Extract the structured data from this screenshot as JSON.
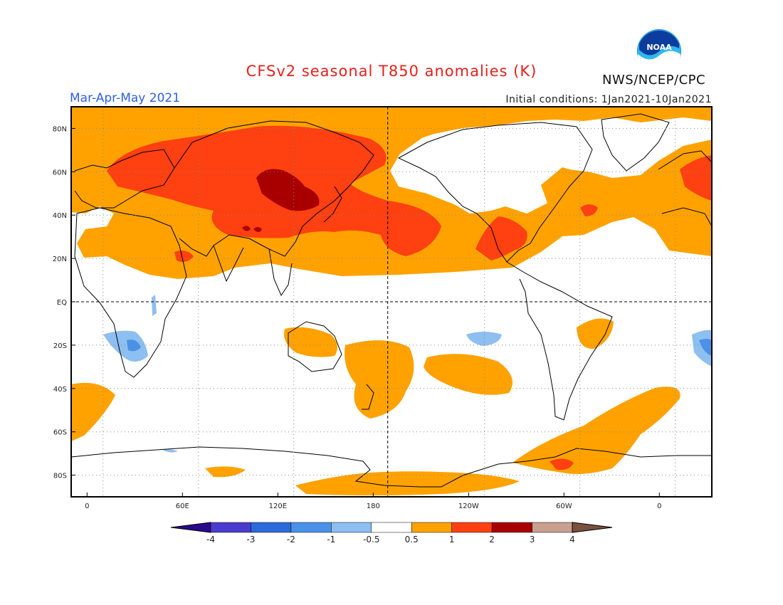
{
  "header": {
    "title": "CFSv2 seasonal T850 anomalies (K)",
    "season": "Mar-Apr-May 2021",
    "initial_conditions": "Initial conditions: 1Jan2021-10Jan2021",
    "agency": "NWS/NCEP/CPC",
    "logo_text": "NOAA",
    "logo_icon": "noaa-logo-icon"
  },
  "map": {
    "projection": "equirectangular",
    "lon_range": [
      -10,
      393
    ],
    "lat_range": [
      -90,
      90
    ],
    "dashed_lines": [
      "EQ",
      "180"
    ],
    "lat_ticks": [
      {
        "value": 80,
        "label": "80N"
      },
      {
        "value": 60,
        "label": "60N"
      },
      {
        "value": 40,
        "label": "40N"
      },
      {
        "value": 20,
        "label": "20N"
      },
      {
        "value": 0,
        "label": "EQ"
      },
      {
        "value": -20,
        "label": "20S"
      },
      {
        "value": -40,
        "label": "40S"
      },
      {
        "value": -60,
        "label": "60S"
      },
      {
        "value": -80,
        "label": "80S"
      }
    ],
    "lon_ticks": [
      {
        "value": 0,
        "label": "0"
      },
      {
        "value": 60,
        "label": "60E"
      },
      {
        "value": 120,
        "label": "120E"
      },
      {
        "value": 180,
        "label": "180"
      },
      {
        "value": 240,
        "label": "120W"
      },
      {
        "value": 300,
        "label": "60W"
      },
      {
        "value": 360,
        "label": "0"
      }
    ]
  },
  "colorbar": {
    "labels": [
      "-4",
      "-3",
      "-2",
      "-1",
      "-0.5",
      "0.5",
      "1",
      "2",
      "3",
      "4"
    ],
    "colors": [
      "#2a0a8c",
      "#4a3bcf",
      "#2b6ad8",
      "#4a91e8",
      "#8dbff0",
      "#ffffff",
      "#ffa200",
      "#ff4010",
      "#a80000",
      "#c8a090",
      "#7a5040"
    ]
  }
}
